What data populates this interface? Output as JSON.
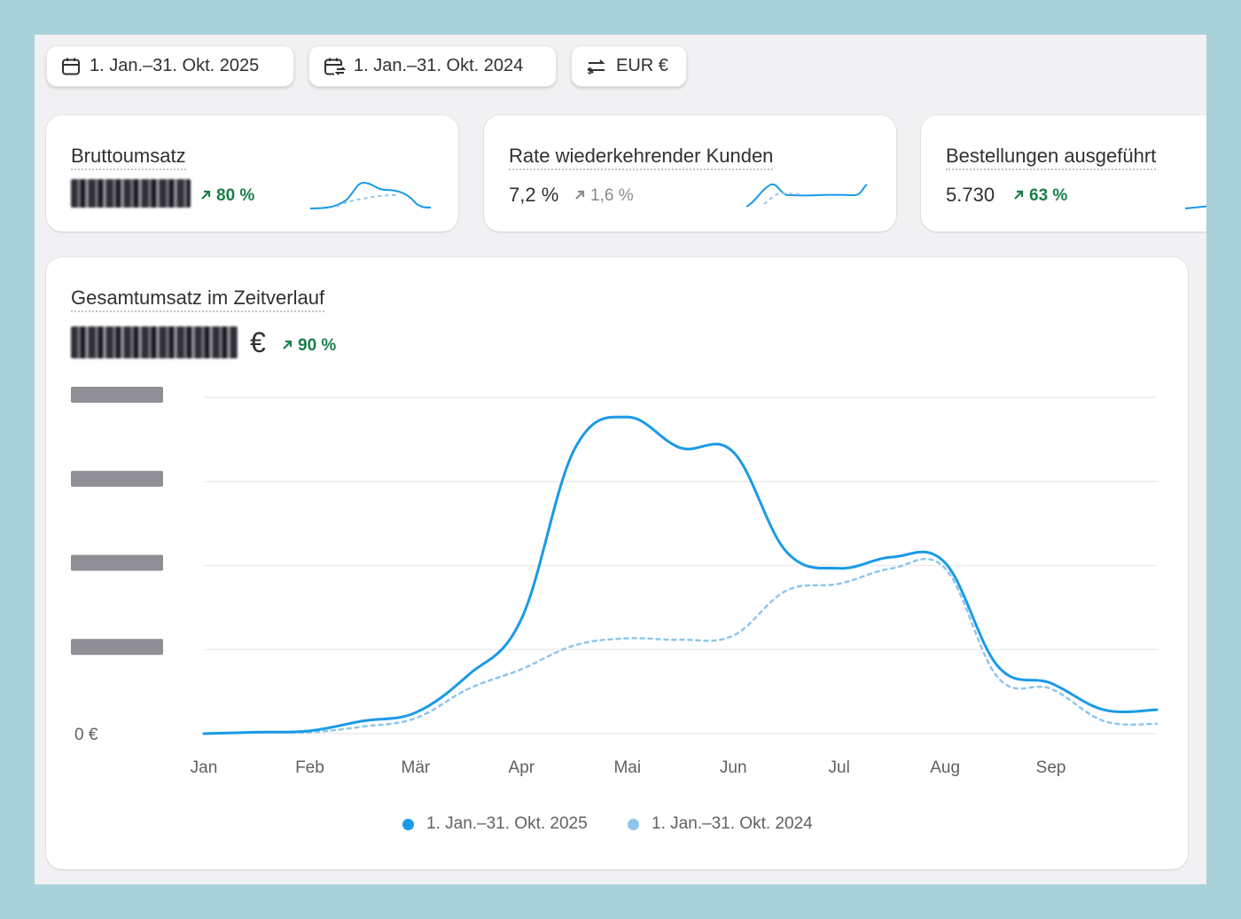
{
  "filters": {
    "date_range": "1. Jan.–31. Okt. 2025",
    "compare_range": "1. Jan.–31. Okt. 2024",
    "currency": "EUR €"
  },
  "metrics": [
    {
      "title": "Bruttoumsatz",
      "value": "",
      "trend": "80 %",
      "trend_style": "positive"
    },
    {
      "title": "Rate wiederkehrender Kunden",
      "value": "7,2 %",
      "trend": "1,6 %",
      "trend_style": "neutral"
    },
    {
      "title": "Bestellungen ausgeführt",
      "value": "5.730",
      "trend": "63 %",
      "trend_style": "positive"
    }
  ],
  "main_chart": {
    "title": "Gesamtumsatz im Zeitverlauf",
    "value_suffix": "€",
    "trend": "90 %",
    "zero_label": "0 €"
  },
  "colors": {
    "current": "#1a9ae8",
    "previous": "#8ec6ec",
    "positive": "#1a7f4b",
    "neutral": "#8a8a8a"
  },
  "chart_data": {
    "type": "line",
    "categories": [
      "Jan",
      "Feb",
      "Mär",
      "Apr",
      "Mai",
      "Jun",
      "Jul",
      "Aug",
      "Sep"
    ],
    "y_tick_labels_visible": [
      "0 €"
    ],
    "y_ticks_redacted": 4,
    "grid": true,
    "legend_position": "bottom",
    "series": [
      {
        "name": "1. Jan.–31. Okt. 2025",
        "style": "solid",
        "x": [
          0,
          0.5,
          1,
          1.5,
          2,
          2.5,
          3,
          3.5,
          4,
          4.5,
          5,
          5.5,
          6,
          6.5,
          7,
          7.5,
          8,
          8.5,
          9
        ],
        "values": [
          0,
          0.1,
          0.2,
          0.9,
          1.5,
          4.2,
          8.2,
          20.3,
          22.6,
          20.4,
          20.1,
          13.0,
          11.8,
          12.6,
          12.2,
          4.8,
          3.6,
          1.7,
          1.7
        ]
      },
      {
        "name": "1. Jan.–31. Okt. 2024",
        "style": "dashed",
        "x": [
          0,
          0.5,
          1,
          1.5,
          2,
          2.5,
          3,
          3.5,
          4,
          4.5,
          5,
          5.5,
          6,
          6.5,
          7,
          7.5,
          8,
          8.5,
          9
        ],
        "values": [
          0,
          0.1,
          0.1,
          0.5,
          1.1,
          3.2,
          4.6,
          6.3,
          6.8,
          6.7,
          7.0,
          10.2,
          10.7,
          11.8,
          11.8,
          4.0,
          3.2,
          0.9,
          0.7
        ]
      }
    ]
  }
}
